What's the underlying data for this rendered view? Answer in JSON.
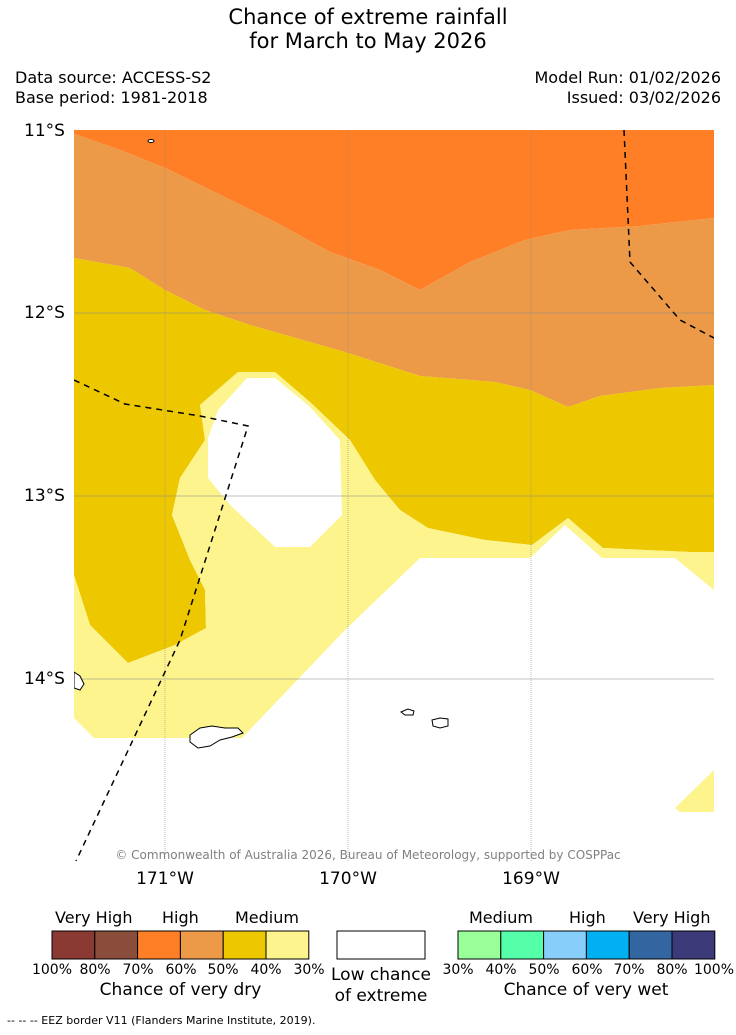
{
  "title": {
    "line1": "Chance of extreme rainfall",
    "line2": "for March to May 2026"
  },
  "meta": {
    "data_source": "Data source: ACCESS-S2",
    "base_period": "Base period: 1981-2018",
    "model_run": "Model Run: 01/02/2026",
    "issued": "Issued: 03/02/2026"
  },
  "axes": {
    "lat_labels": [
      "11°S",
      "12°S",
      "13°S",
      "14°S"
    ],
    "lon_labels": [
      "171°W",
      "170°W",
      "169°W"
    ]
  },
  "copyright": "© Commonwealth of Australia 2026, Bureau of Meteorology, supported by COSPPac",
  "colors": {
    "very_high_dry": "#FF7F27",
    "high_dry": "#EC9A48",
    "medium_dry": "#EDC800",
    "low_dry": "#FDF48D"
  },
  "legend": {
    "dry": {
      "headers": [
        "Very High",
        "High",
        "Medium"
      ],
      "ticks": [
        "100%",
        "80%",
        "70%",
        "60%",
        "50%",
        "40%",
        "30%"
      ],
      "colors": [
        "#8B3A33",
        "#8A4C3B",
        "#FF7F27",
        "#EC9A48",
        "#EDC800",
        "#FDF48D"
      ],
      "caption": "Chance of very dry"
    },
    "low": {
      "caption_line1": "Low chance",
      "caption_line2": "of extreme"
    },
    "wet": {
      "headers": [
        "Medium",
        "High",
        "Very High"
      ],
      "ticks": [
        "30%",
        "40%",
        "50%",
        "60%",
        "70%",
        "80%",
        "100%"
      ],
      "colors": [
        "#99FF99",
        "#55FFAA",
        "#87CEFA",
        "#00B0F0",
        "#3366A0",
        "#3D3A7A"
      ],
      "caption": "Chance of very wet"
    }
  },
  "footnote": "--  --  -- EEZ border V11 (Flanders Marine Institute, 2019)."
}
